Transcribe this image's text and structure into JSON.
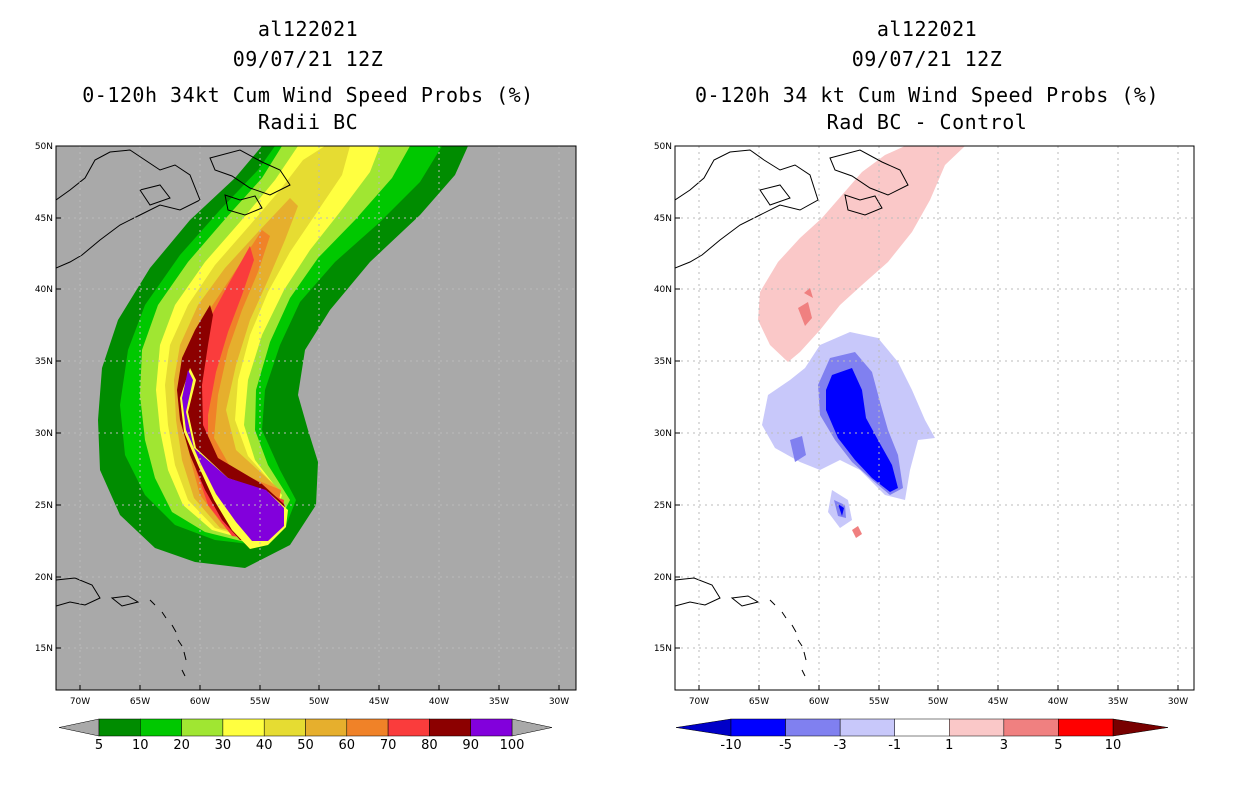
{
  "colors": {
    "land_fill_left": "#a9a9a9",
    "prob_colors": [
      "#008c00",
      "#00c800",
      "#a0e632",
      "#ffff40",
      "#e6dc32",
      "#e6af2d",
      "#f08228",
      "#fa3c3c",
      "#8c0000",
      "#8200dc"
    ],
    "diff_colors": [
      "#0000c8",
      "#0000ff",
      "#8080f0",
      "#c8c8fa",
      "#ffffff",
      "#fac8c8",
      "#f08080",
      "#ff0000",
      "#780000"
    ],
    "grid": "#bbbbbb"
  },
  "left_panel": {
    "title_line1": "al122021",
    "title_line2": "09/07/21 12Z",
    "title_line3": "0-120h 34kt Cum Wind Speed Probs (%)",
    "title_line4": "Radii BC"
  },
  "right_panel": {
    "title_line1": "al122021",
    "title_line2": "09/07/21 12Z",
    "title_line3": "0-120h 34 kt Cum Wind Speed Probs (%)",
    "title_line4": "Rad BC - Control"
  },
  "axes": {
    "lat_labels": [
      "15N",
      "20N",
      "25N",
      "30N",
      "35N",
      "40N",
      "45N",
      "50N"
    ],
    "lon_labels": [
      "70W",
      "65W",
      "60W",
      "55W",
      "50W",
      "45W",
      "40W",
      "35W",
      "30W"
    ]
  },
  "colorbars": {
    "left_labels": [
      "5",
      "10",
      "20",
      "30",
      "40",
      "50",
      "60",
      "70",
      "80",
      "90",
      "100"
    ],
    "right_labels": [
      "-10",
      "-5",
      "-3",
      "-1",
      "1",
      "3",
      "5",
      "10"
    ]
  }
}
